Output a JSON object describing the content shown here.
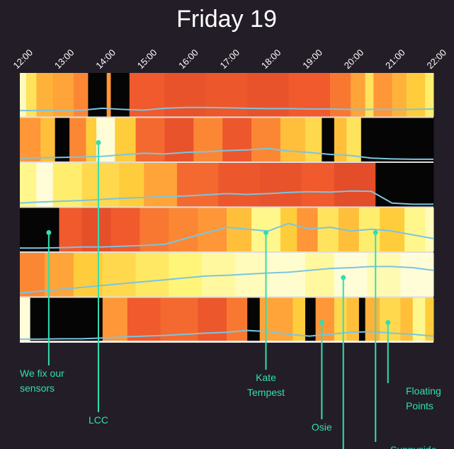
{
  "chart_data": {
    "type": "heatmap",
    "title": "Friday 19",
    "x_ticks": [
      "12:00",
      "13:00",
      "14:00",
      "15:00",
      "16:00",
      "17:00",
      "18:00",
      "19:00",
      "20:00",
      "21:00",
      "22:00"
    ],
    "x_range_hours": [
      12,
      22
    ],
    "rows": [
      {
        "segments": [
          [
            12.0,
            12.15,
            0.05
          ],
          [
            12.15,
            12.4,
            0.2
          ],
          [
            12.4,
            12.8,
            0.4
          ],
          [
            12.8,
            13.3,
            0.45
          ],
          [
            13.3,
            13.65,
            0.55
          ],
          [
            13.65,
            14.1,
            -1
          ],
          [
            14.1,
            14.2,
            0.5
          ],
          [
            14.2,
            14.65,
            -1
          ],
          [
            14.65,
            15.5,
            0.7
          ],
          [
            15.5,
            16.5,
            0.75
          ],
          [
            16.5,
            17.5,
            0.72
          ],
          [
            17.5,
            18.5,
            0.75
          ],
          [
            18.5,
            19.5,
            0.7
          ],
          [
            19.5,
            20.0,
            0.6
          ],
          [
            20.0,
            20.35,
            0.45
          ],
          [
            20.35,
            20.55,
            0.2
          ],
          [
            20.55,
            21.0,
            0.5
          ],
          [
            21.0,
            21.35,
            0.4
          ],
          [
            21.35,
            21.8,
            0.3
          ],
          [
            21.8,
            22.0,
            0.15
          ]
        ],
        "line": [
          0.12,
          0.12,
          0.13,
          0.13,
          0.18,
          0.15,
          0.13,
          0.18,
          0.2,
          0.2,
          0.19,
          0.18,
          0.17,
          0.17,
          0.16,
          0.16,
          0.15,
          0.15,
          0.15,
          0.15,
          0.16
        ]
      },
      {
        "segments": [
          [
            12.0,
            12.5,
            0.5
          ],
          [
            12.5,
            12.85,
            0.35
          ],
          [
            12.85,
            13.2,
            -1
          ],
          [
            13.2,
            13.6,
            0.55
          ],
          [
            13.6,
            13.85,
            0.3
          ],
          [
            13.85,
            14.3,
            0.02
          ],
          [
            14.3,
            14.8,
            0.3
          ],
          [
            14.8,
            15.5,
            0.65
          ],
          [
            15.5,
            16.2,
            0.75
          ],
          [
            16.2,
            16.9,
            0.55
          ],
          [
            16.9,
            17.6,
            0.72
          ],
          [
            17.6,
            18.3,
            0.55
          ],
          [
            18.3,
            18.9,
            0.35
          ],
          [
            18.9,
            19.3,
            0.25
          ],
          [
            19.3,
            19.6,
            -1
          ],
          [
            19.6,
            19.9,
            0.35
          ],
          [
            19.9,
            20.25,
            0.2
          ],
          [
            20.25,
            22.0,
            -1
          ]
        ],
        "line": [
          0.05,
          0.06,
          0.07,
          0.08,
          0.1,
          0.14,
          0.18,
          0.16,
          0.2,
          0.22,
          0.25,
          0.27,
          0.3,
          0.24,
          0.2,
          0.15,
          0.12,
          0.05,
          0.03,
          0.02,
          0.02
        ]
      },
      {
        "segments": [
          [
            12.0,
            12.4,
            0.1
          ],
          [
            12.4,
            12.8,
            0.02
          ],
          [
            12.8,
            13.5,
            0.15
          ],
          [
            13.5,
            14.4,
            0.25
          ],
          [
            14.4,
            15.0,
            0.3
          ],
          [
            15.0,
            15.8,
            0.45
          ],
          [
            15.8,
            16.8,
            0.65
          ],
          [
            16.8,
            17.8,
            0.72
          ],
          [
            17.8,
            18.8,
            0.75
          ],
          [
            18.8,
            19.6,
            0.7
          ],
          [
            19.6,
            20.6,
            0.8
          ],
          [
            20.6,
            22.0,
            -1
          ]
        ],
        "line": [
          0.05,
          0.08,
          0.1,
          0.12,
          0.15,
          0.18,
          0.2,
          0.22,
          0.24,
          0.27,
          0.3,
          0.28,
          0.3,
          0.33,
          0.35,
          0.34,
          0.37,
          0.36,
          0.05,
          0.02,
          0.02
        ]
      },
      {
        "segments": [
          [
            12.0,
            12.95,
            -1
          ],
          [
            12.95,
            13.5,
            0.7
          ],
          [
            13.5,
            14.2,
            0.78
          ],
          [
            14.2,
            14.9,
            0.7
          ],
          [
            14.9,
            15.6,
            0.6
          ],
          [
            15.6,
            16.3,
            0.55
          ],
          [
            16.3,
            17.0,
            0.5
          ],
          [
            17.0,
            17.6,
            0.35
          ],
          [
            17.6,
            18.3,
            0.1
          ],
          [
            18.3,
            18.7,
            0.3
          ],
          [
            18.7,
            19.2,
            0.5
          ],
          [
            19.2,
            19.7,
            0.2
          ],
          [
            19.7,
            20.2,
            0.35
          ],
          [
            20.2,
            20.7,
            0.15
          ],
          [
            20.7,
            21.3,
            0.3
          ],
          [
            21.3,
            21.8,
            0.1
          ],
          [
            21.8,
            22.0,
            0.05
          ]
        ],
        "line": [
          0.05,
          0.05,
          0.06,
          0.08,
          0.08,
          0.1,
          0.12,
          0.15,
          0.3,
          0.45,
          0.6,
          0.55,
          0.5,
          0.7,
          0.55,
          0.6,
          0.5,
          0.55,
          0.5,
          0.4,
          0.3
        ]
      },
      {
        "segments": [
          [
            12.0,
            12.6,
            0.55
          ],
          [
            12.6,
            13.3,
            0.45
          ],
          [
            13.3,
            14.0,
            0.3
          ],
          [
            14.0,
            14.8,
            0.25
          ],
          [
            14.8,
            15.6,
            0.18
          ],
          [
            15.6,
            16.4,
            0.12
          ],
          [
            16.4,
            17.2,
            0.08
          ],
          [
            17.2,
            18.0,
            0.05
          ],
          [
            18.0,
            18.9,
            0.03
          ],
          [
            18.9,
            19.6,
            0.08
          ],
          [
            19.6,
            20.4,
            0.02
          ],
          [
            20.4,
            21.2,
            0.06
          ],
          [
            21.2,
            22.0,
            0.02
          ]
        ],
        "line": [
          0.05,
          0.1,
          0.15,
          0.2,
          0.25,
          0.3,
          0.35,
          0.4,
          0.45,
          0.5,
          0.52,
          0.55,
          0.58,
          0.6,
          0.65,
          0.7,
          0.72,
          0.75,
          0.75,
          0.72,
          0.65
        ]
      },
      {
        "segments": [
          [
            12.0,
            12.25,
            0.02
          ],
          [
            12.25,
            14.0,
            -1
          ],
          [
            14.0,
            14.6,
            0.5
          ],
          [
            14.6,
            15.4,
            0.7
          ],
          [
            15.4,
            16.3,
            0.65
          ],
          [
            16.3,
            17.0,
            0.72
          ],
          [
            17.0,
            17.5,
            0.6
          ],
          [
            17.5,
            17.8,
            -1
          ],
          [
            17.8,
            18.6,
            0.45
          ],
          [
            18.6,
            18.9,
            0.3
          ],
          [
            18.9,
            19.15,
            -1
          ],
          [
            19.15,
            19.6,
            0.5
          ],
          [
            19.6,
            19.9,
            0.25
          ],
          [
            19.9,
            20.2,
            0.35
          ],
          [
            20.2,
            20.35,
            -1
          ],
          [
            20.35,
            20.7,
            0.4
          ],
          [
            20.7,
            21.2,
            0.25
          ],
          [
            21.2,
            21.5,
            0.35
          ],
          [
            21.5,
            21.8,
            0.1
          ],
          [
            21.8,
            22.0,
            0.3
          ]
        ],
        "line": [
          0.02,
          0.02,
          0.03,
          0.03,
          0.05,
          0.08,
          0.1,
          0.12,
          0.15,
          0.18,
          0.2,
          0.25,
          0.22,
          0.15,
          0.1,
          0.15,
          0.2,
          0.22,
          0.18,
          0.15,
          0.1
        ]
      }
    ],
    "annotations": [
      {
        "lines": [
          "We fix our",
          "sensors"
        ],
        "row": 3,
        "x": 12.7,
        "label_y": 532,
        "anchor": "start",
        "label_x": 28
      },
      {
        "lines": [
          "LCC"
        ],
        "row": 1,
        "x": 13.9,
        "label_y": 598,
        "anchor": "middle"
      },
      {
        "lines": [
          "Kate",
          "Tempest"
        ],
        "row": 3,
        "x": 17.95,
        "label_y": 538,
        "anchor": "middle"
      },
      {
        "lines": [
          "Osie"
        ],
        "row": 5,
        "x": 19.3,
        "label_y": 608,
        "anchor": "middle"
      },
      {
        "lines": [],
        "row": 4,
        "x": 19.82,
        "label_y": 640,
        "anchor": "middle"
      },
      {
        "lines": [
          "Floating",
          "Points"
        ],
        "row": 5,
        "x": 20.9,
        "label_y": 557,
        "anchor": "start",
        "label_x": 573
      },
      {
        "lines": [
          "Sunnyside"
        ],
        "row": 3,
        "x": 20.6,
        "label_y": 640,
        "anchor": "start",
        "label_x": 551
      }
    ],
    "colors": {
      "background": "#231d27",
      "line": "#7cc4e0",
      "annotation": "#2fe0b0"
    }
  }
}
